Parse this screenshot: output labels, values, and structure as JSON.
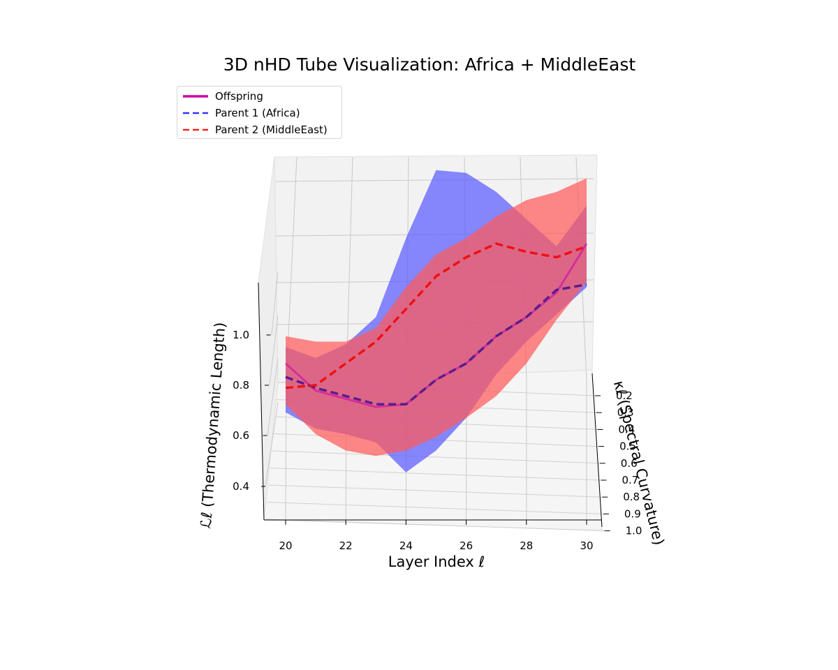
{
  "title": "3D nHD Tube Visualization: Africa + MiddleEast",
  "legend": {
    "offspring": "Offspring",
    "parent1": "Parent 1 (Africa)",
    "parent2": "Parent 2 (MiddleEast)"
  },
  "colors": {
    "offspring": "#cc00aa",
    "parent1": "#3333ff",
    "parent2": "#ff2222",
    "tube_parent1": "#5a5aff",
    "tube_parent2": "#ff5a5a"
  },
  "chart_data": {
    "type": "line",
    "projection": "3d",
    "xlabel": "Layer Index ℓ",
    "ylabel": "κℓ (Spectral Curvature)",
    "zlabel": "ℒℓ (Thermodynamic Length)",
    "x_ticks": [
      "20",
      "22",
      "24",
      "26",
      "28",
      "30"
    ],
    "y_ticks": [
      "0.2",
      "0.3",
      "0.4",
      "0.5",
      "0.6",
      "0.7",
      "0.8",
      "0.9",
      "1.0"
    ],
    "z_ticks": [
      "0.4",
      "0.6",
      "0.8",
      "1.0"
    ],
    "grid": true,
    "legend_position": "upper-left",
    "x": [
      20,
      21,
      22,
      23,
      24,
      25,
      26,
      27,
      28,
      29,
      30
    ],
    "series": [
      {
        "name": "Offspring",
        "style": "solid",
        "z": [
          0.92,
          0.82,
          0.79,
          0.76,
          0.77,
          0.86,
          0.92,
          1.02,
          1.09,
          1.18,
          1.36
        ]
      },
      {
        "name": "Parent 1 (Africa)",
        "style": "dashed",
        "z": [
          0.87,
          0.83,
          0.8,
          0.77,
          0.77,
          0.86,
          0.92,
          1.02,
          1.09,
          1.19,
          1.21
        ],
        "tube_upper": [
          0.98,
          0.94,
          0.99,
          1.09,
          1.38,
          1.63,
          1.62,
          1.55,
          1.45,
          1.35,
          1.5
        ],
        "tube_lower": [
          0.74,
          0.68,
          0.66,
          0.63,
          0.52,
          0.6,
          0.72,
          0.88,
          1.0,
          1.1,
          1.2
        ]
      },
      {
        "name": "Parent 2 (MiddleEast)",
        "style": "dashed",
        "z": [
          0.83,
          0.84,
          0.92,
          1.0,
          1.12,
          1.24,
          1.31,
          1.36,
          1.33,
          1.31,
          1.35
        ],
        "tube_upper": [
          1.02,
          1.0,
          1.0,
          1.05,
          1.2,
          1.32,
          1.38,
          1.46,
          1.52,
          1.55,
          1.6
        ],
        "tube_lower": [
          0.77,
          0.66,
          0.6,
          0.58,
          0.6,
          0.65,
          0.72,
          0.8,
          0.92,
          1.08,
          1.22
        ]
      }
    ]
  }
}
